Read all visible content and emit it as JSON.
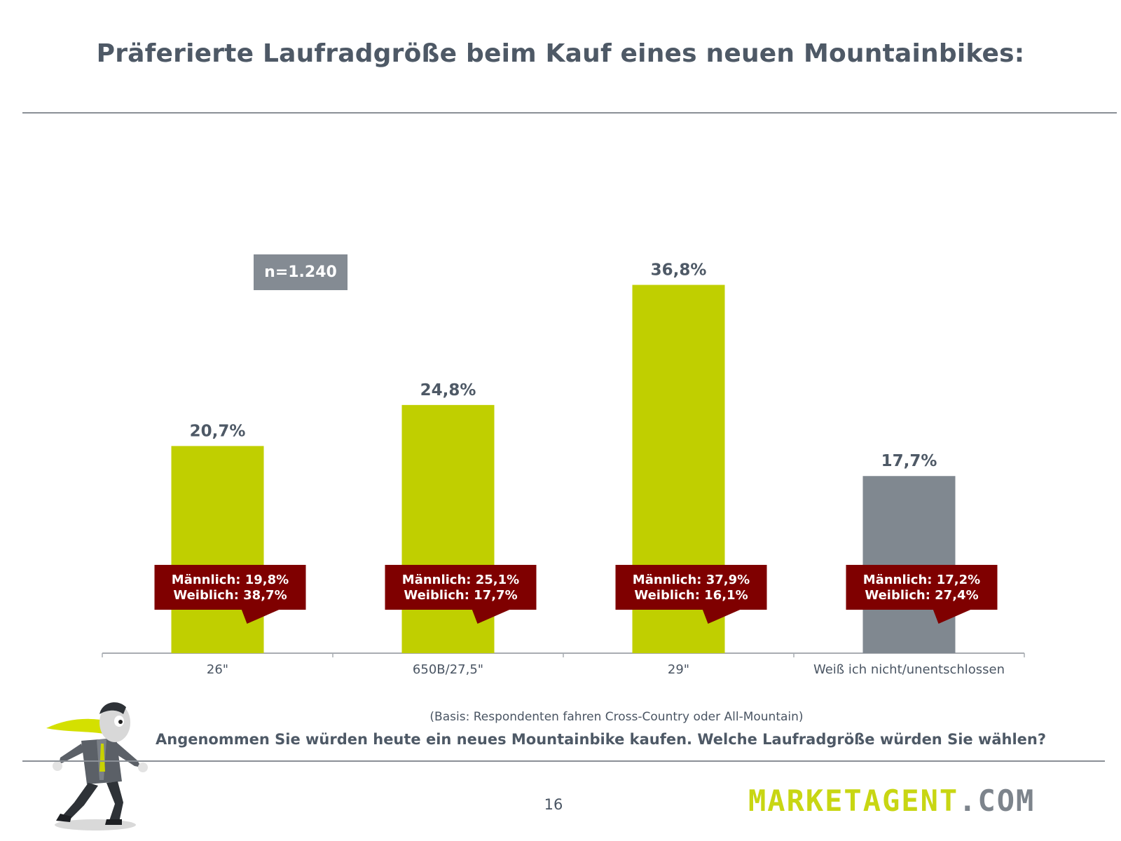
{
  "title": "Präferierte Laufradgröße beim Kauf eines neuen Mountainbikes:",
  "sample_badge": "n=1.240",
  "basis": "(Basis: Respondenten fahren Cross-Country oder All-Mountain)",
  "question": "Angenommen Sie würden heute ein neues Mountainbike kaufen. Welche Laufradgröße würden Sie wählen?",
  "page_number": "16",
  "logo": {
    "brand": "MARKETAGENT",
    "tld": ".COM"
  },
  "colors": {
    "bar_primary": "#c0cf00",
    "bar_neutral": "#808890",
    "callout": "#7f0000",
    "text": "#4e5966",
    "axis": "#a9adb2"
  },
  "chart_data": {
    "type": "bar",
    "categories": [
      "26\"",
      "650B/27,5\"",
      "29\"",
      "Weiß ich nicht/unentschlossen"
    ],
    "values": [
      20.7,
      24.8,
      36.8,
      17.7
    ],
    "value_labels": [
      "20,7%",
      "24,8%",
      "36,8%",
      "17,7%"
    ],
    "bar_colors": [
      "#c0cf00",
      "#c0cf00",
      "#c0cf00",
      "#808890"
    ],
    "breakdown": [
      {
        "male": "Männlich: 19,8%",
        "female": "Weiblich: 38,7%"
      },
      {
        "male": "Männlich: 25,1%",
        "female": "Weiblich: 17,7%"
      },
      {
        "male": "Männlich: 37,9%",
        "female": "Weiblich: 16,1%"
      },
      {
        "male": "Männlich: 17,2%",
        "female": "Weiblich: 27,4%"
      }
    ],
    "ylim": [
      0,
      40
    ],
    "grid": false,
    "legend": "none"
  }
}
